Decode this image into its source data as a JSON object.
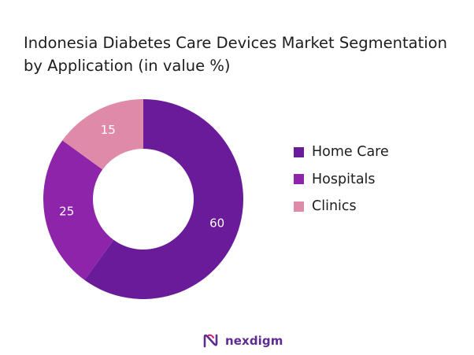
{
  "chart_data": {
    "type": "pie",
    "variant": "donut",
    "title": "Indonesia Diabetes Care Devices Market Segmentation by Application (in value %)",
    "categories": [
      "Home Care",
      "Hospitals",
      "Clinics"
    ],
    "values": [
      60,
      25,
      15
    ],
    "colors": [
      "#6a1b9a",
      "#8e24aa",
      "#df8aa8"
    ],
    "label_color": "#ffffff",
    "legend_position": "right"
  },
  "brand": {
    "name": "nexdigm",
    "color": "#5e2c8f"
  }
}
